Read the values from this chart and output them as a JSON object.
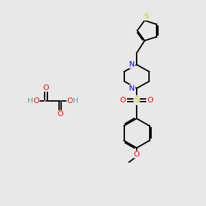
{
  "bg_color": "#e8e8e8",
  "bond_color": "#000000",
  "bond_width": 1.4,
  "colors": {
    "N": "#0000ff",
    "O": "#ff0000",
    "S_sul": "#cccc00",
    "S_thio": "#cccc00",
    "H": "#5f9ea0"
  }
}
